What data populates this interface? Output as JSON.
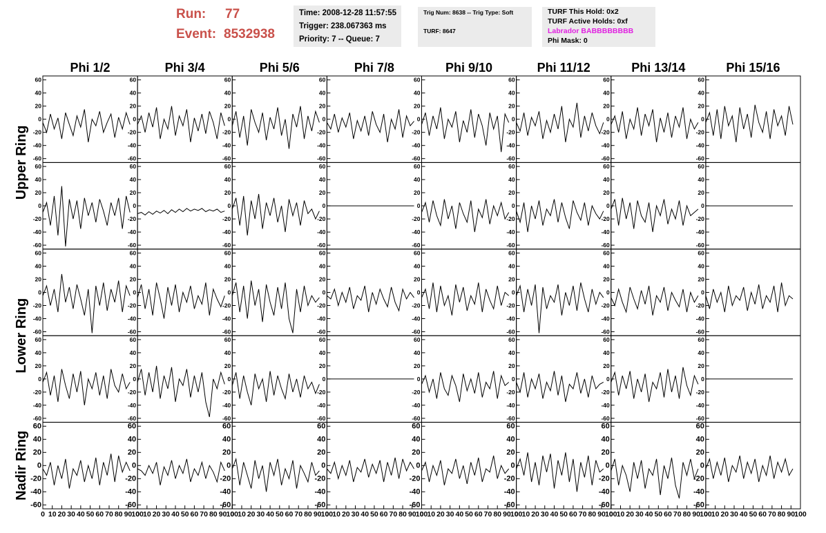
{
  "header": {
    "run_label": "Run:",
    "run": "77",
    "event_label": "Event:",
    "event": "8532938",
    "time_box": [
      "Time: 2008-12-28 11:57:55",
      "Trigger: 238.067363 ms",
      "Priority: 7 -- Queue: 7"
    ],
    "trig_box": [
      "Trig Num: 8638 -- Trig Type: Soft",
      "TURF: 8647"
    ],
    "turf_box": [
      "TURF This Hold: 0x2",
      "TURF Active Holds: 0xf",
      "Labrador BABBBBBBBB",
      "Phi Mask: 0"
    ]
  },
  "chart_data": {
    "type": "waveform-grid",
    "color": "#000000",
    "columns": [
      "Phi 1/2",
      "Phi 3/4",
      "Phi 5/6",
      "Phi 7/8",
      "Phi 9/10",
      "Phi 11/12",
      "Phi 13/14",
      "Phi 15/16"
    ],
    "ring_labels": [
      "Upper Ring",
      "Lower Ring",
      "Nadir Ring"
    ],
    "xlim": [
      0,
      100
    ],
    "xticks": [
      0,
      10,
      20,
      30,
      40,
      50,
      60,
      70,
      80,
      90,
      100
    ],
    "ylim": [
      -66,
      66
    ],
    "yticks": [
      -60,
      -40,
      -20,
      0,
      20,
      40,
      60
    ],
    "x": [
      0,
      4,
      8,
      12,
      16,
      20,
      24,
      28,
      32,
      36,
      40,
      44,
      48,
      52,
      56,
      60,
      64,
      68,
      72,
      76,
      80,
      84,
      88,
      92
    ],
    "series": [
      {
        "values": [
          -5,
          -20,
          8,
          -15,
          2,
          -30,
          10,
          -8,
          -25,
          5,
          -12,
          15,
          -35,
          0,
          -10,
          12,
          -20,
          -5,
          8,
          -28,
          3,
          -15,
          10,
          -8
        ]
      },
      {
        "values": [
          -8,
          5,
          -20,
          10,
          -12,
          18,
          -30,
          0,
          -15,
          20,
          -25,
          5,
          -10,
          15,
          -35,
          2,
          -18,
          8,
          -22,
          12,
          -5,
          -30,
          10,
          -10
        ]
      },
      {
        "values": [
          -10,
          12,
          -28,
          5,
          -40,
          15,
          -5,
          -20,
          10,
          -32,
          3,
          -15,
          18,
          -25,
          0,
          -45,
          8,
          -12,
          20,
          -30,
          5,
          -18,
          12,
          -5
        ]
      },
      {
        "values": [
          -5,
          -15,
          8,
          -20,
          2,
          -12,
          10,
          -30,
          -2,
          -18,
          5,
          -25,
          12,
          -8,
          -20,
          8,
          -35,
          0,
          -15,
          15,
          -28,
          5,
          -10,
          -3
        ]
      },
      {
        "values": [
          -8,
          10,
          -25,
          5,
          -15,
          18,
          -30,
          0,
          -12,
          12,
          -35,
          -2,
          -20,
          15,
          -28,
          8,
          -10,
          -40,
          10,
          -15,
          5,
          -50,
          8,
          -5
        ]
      },
      {
        "values": [
          -5,
          -18,
          10,
          -25,
          3,
          -10,
          12,
          -30,
          -2,
          -20,
          8,
          -15,
          20,
          -35,
          0,
          -12,
          25,
          -28,
          5,
          -18,
          10,
          -10,
          -22,
          -5
        ]
      },
      {
        "values": [
          -8,
          5,
          -20,
          12,
          -30,
          0,
          -15,
          18,
          -25,
          8,
          -10,
          15,
          -35,
          2,
          -20,
          10,
          -28,
          5,
          -12,
          18,
          -30,
          0,
          -15,
          -5
        ]
      },
      {
        "values": [
          -5,
          10,
          -25,
          15,
          -30,
          20,
          -10,
          5,
          -35,
          18,
          -15,
          8,
          -28,
          22,
          -5,
          -20,
          12,
          -30,
          15,
          -10,
          5,
          -25,
          20,
          -8
        ]
      },
      {
        "values": [
          -10,
          5,
          -30,
          15,
          -45,
          30,
          -62,
          10,
          -20,
          8,
          -35,
          12,
          -15,
          5,
          -25,
          10,
          -8,
          -30,
          5,
          -15,
          12,
          -35,
          15,
          -10
        ]
      },
      {
        "values": [
          -12,
          -10,
          -14,
          -9,
          -13,
          -8,
          -11,
          -7,
          -12,
          -6,
          -10,
          -5,
          -9,
          -4,
          -8,
          -5,
          -7,
          -4,
          -9,
          -6,
          -8,
          -5,
          -10,
          -8
        ]
      },
      {
        "values": [
          -5,
          12,
          -30,
          15,
          -45,
          8,
          -20,
          18,
          -35,
          5,
          -15,
          12,
          -25,
          0,
          -40,
          10,
          -15,
          5,
          -30,
          8,
          -12,
          -5,
          -20,
          -8
        ]
      },
      {
        "values": [
          0,
          0,
          0,
          0,
          0,
          0,
          0,
          0,
          0,
          0,
          0,
          0,
          0,
          0,
          0,
          0,
          0,
          0,
          0,
          0,
          0,
          0,
          0,
          0
        ]
      },
      {
        "values": [
          -10,
          5,
          -25,
          8,
          -15,
          -30,
          10,
          -20,
          0,
          -35,
          5,
          -12,
          -25,
          8,
          -40,
          -5,
          -18,
          10,
          -28,
          0,
          -15,
          5,
          -20,
          -10
        ]
      },
      {
        "values": [
          -8,
          -25,
          5,
          -40,
          0,
          -20,
          8,
          -30,
          -5,
          -15,
          10,
          -25,
          5,
          -18,
          -35,
          8,
          -10,
          -22,
          5,
          -30,
          0,
          -12,
          -20,
          -8
        ]
      },
      {
        "values": [
          -5,
          10,
          -30,
          12,
          -20,
          5,
          -35,
          8,
          -15,
          -25,
          5,
          -40,
          0,
          -15,
          10,
          -28,
          -5,
          -20,
          8,
          -30,
          0,
          -15,
          -10,
          -5
        ]
      },
      {
        "values": [
          0,
          0,
          0,
          0,
          0,
          0,
          0,
          0,
          0,
          0,
          0,
          0,
          0,
          0,
          0,
          0,
          0,
          0,
          0,
          0,
          0,
          0,
          0,
          0
        ]
      },
      {
        "values": [
          -5,
          10,
          -20,
          5,
          -30,
          28,
          -15,
          8,
          -25,
          12,
          -10,
          -35,
          5,
          -62,
          10,
          -20,
          15,
          -28,
          5,
          -15,
          18,
          -30,
          10,
          -5
        ]
      },
      {
        "values": [
          -8,
          12,
          -25,
          5,
          -35,
          15,
          -10,
          -40,
          8,
          -20,
          12,
          -30,
          0,
          -15,
          10,
          -25,
          -5,
          -18,
          15,
          -35,
          5,
          -10,
          -22,
          -5
        ]
      },
      {
        "values": [
          -5,
          15,
          -30,
          10,
          -40,
          18,
          -20,
          5,
          -45,
          12,
          -15,
          -35,
          8,
          -25,
          15,
          -40,
          -62,
          5,
          -30,
          10,
          -20,
          -5,
          -15,
          -8
        ]
      },
      {
        "values": [
          -5,
          -10,
          5,
          -20,
          0,
          -15,
          8,
          -25,
          -5,
          -12,
          10,
          -30,
          0,
          -18,
          5,
          -10,
          -22,
          8,
          -15,
          -28,
          5,
          -10,
          0,
          -8
        ]
      },
      {
        "values": [
          -8,
          5,
          -25,
          15,
          -30,
          10,
          -20,
          -5,
          -35,
          12,
          -15,
          8,
          -28,
          -5,
          -18,
          15,
          -30,
          5,
          -12,
          -25,
          10,
          -20,
          0,
          -5
        ]
      },
      {
        "values": [
          -5,
          10,
          -30,
          5,
          -20,
          12,
          -62,
          8,
          -25,
          -5,
          -15,
          12,
          -35,
          0,
          -20,
          10,
          -28,
          15,
          -10,
          -30,
          5,
          -18,
          0,
          -8
        ]
      },
      {
        "values": [
          -8,
          -20,
          5,
          -15,
          -30,
          8,
          -10,
          -25,
          3,
          -18,
          10,
          -35,
          -5,
          -15,
          8,
          -28,
          0,
          -12,
          -22,
          5,
          -30,
          0,
          -15,
          -5
        ]
      },
      {
        "values": [
          -5,
          -25,
          5,
          -15,
          0,
          -30,
          10,
          -20,
          -5,
          -12,
          8,
          -28,
          0,
          -18,
          12,
          -25,
          -5,
          -15,
          10,
          -30,
          15,
          -20,
          -5,
          -10
        ]
      },
      {
        "values": [
          -5,
          10,
          -25,
          5,
          -35,
          15,
          -10,
          -30,
          8,
          -20,
          12,
          -40,
          0,
          -15,
          10,
          -25,
          5,
          -30,
          15,
          -10,
          -20,
          8,
          -15,
          -5
        ]
      },
      {
        "values": [
          -5,
          15,
          -25,
          10,
          -20,
          20,
          -30,
          5,
          -15,
          18,
          -35,
          0,
          -10,
          15,
          -28,
          5,
          -20,
          10,
          -35,
          -58,
          0,
          -15,
          10,
          -8
        ]
      },
      {
        "values": [
          -10,
          10,
          -30,
          5,
          -20,
          -40,
          8,
          -15,
          0,
          -35,
          12,
          -25,
          5,
          -15,
          -30,
          8,
          -20,
          0,
          -28,
          5,
          -15,
          -5,
          -22,
          -8
        ]
      },
      {
        "values": [
          0,
          0,
          0,
          0,
          0,
          0,
          0,
          0,
          0,
          0,
          0,
          0,
          0,
          0,
          0,
          0,
          0,
          0,
          0,
          0,
          0,
          0,
          0,
          0
        ]
      },
      {
        "values": [
          -8,
          5,
          -20,
          0,
          -30,
          10,
          -15,
          -25,
          5,
          -10,
          -35,
          8,
          -18,
          0,
          -22,
          10,
          -28,
          -5,
          -15,
          12,
          -30,
          5,
          -10,
          -5
        ]
      },
      {
        "values": [
          -5,
          -20,
          10,
          -28,
          0,
          -15,
          8,
          -30,
          -5,
          -18,
          12,
          -25,
          5,
          -35,
          -8,
          -15,
          10,
          -22,
          0,
          -28,
          5,
          -15,
          -8,
          -5
        ]
      },
      {
        "values": [
          -5,
          10,
          -25,
          5,
          -15,
          12,
          -30,
          0,
          -20,
          8,
          -35,
          -5,
          -15,
          10,
          -28,
          15,
          -20,
          5,
          -30,
          18,
          -10,
          -25,
          5,
          -8
        ]
      },
      {
        "values": [
          0,
          0,
          0,
          0,
          0,
          0,
          0,
          0,
          0,
          0,
          0,
          0,
          0,
          0,
          0,
          0,
          0,
          0,
          0,
          0,
          0,
          0,
          0,
          0
        ]
      },
      {
        "values": [
          -5,
          -15,
          5,
          -30,
          0,
          -20,
          10,
          -35,
          -5,
          -15,
          8,
          -25,
          0,
          -20,
          12,
          -30,
          5,
          -15,
          18,
          -25,
          15,
          -10,
          5,
          -8
        ]
      },
      {
        "values": [
          -5,
          -8,
          -15,
          0,
          -12,
          5,
          -30,
          -2,
          -15,
          8,
          -20,
          0,
          -12,
          10,
          -25,
          -5,
          -15,
          5,
          -20,
          0,
          -10,
          -25,
          5,
          -8
        ]
      },
      {
        "values": [
          -5,
          10,
          -30,
          5,
          -15,
          -35,
          8,
          -20,
          0,
          -40,
          5,
          -15,
          10,
          -30,
          -5,
          -20,
          8,
          -35,
          0,
          -12,
          -25,
          5,
          -15,
          -8
        ]
      },
      {
        "values": [
          -5,
          -12,
          5,
          -20,
          0,
          -15,
          8,
          -25,
          -3,
          -10,
          10,
          -18,
          2,
          -12,
          8,
          -25,
          5,
          -15,
          12,
          -20,
          10,
          -8,
          5,
          -5
        ]
      },
      {
        "values": [
          -8,
          5,
          -25,
          0,
          -15,
          8,
          -30,
          -5,
          -12,
          10,
          -20,
          0,
          -28,
          5,
          -15,
          12,
          -25,
          -5,
          -10,
          15,
          -20,
          0,
          -12,
          -5
        ]
      },
      {
        "values": [
          -5,
          10,
          -15,
          20,
          -25,
          5,
          -30,
          15,
          -10,
          18,
          -35,
          8,
          -15,
          20,
          -25,
          10,
          -40,
          5,
          -18,
          15,
          -30,
          8,
          -10,
          -5
        ]
      },
      {
        "values": [
          -8,
          10,
          -30,
          0,
          -15,
          -40,
          5,
          -20,
          8,
          -35,
          -5,
          -15,
          10,
          -45,
          0,
          -20,
          12,
          -30,
          -50,
          5,
          -15,
          10,
          -20,
          -5
        ]
      },
      {
        "values": [
          -5,
          10,
          -20,
          5,
          -15,
          12,
          -25,
          0,
          -10,
          15,
          -20,
          5,
          -12,
          10,
          -25,
          0,
          -15,
          15,
          -20,
          5,
          -10,
          10,
          -15,
          -5
        ]
      }
    ]
  }
}
